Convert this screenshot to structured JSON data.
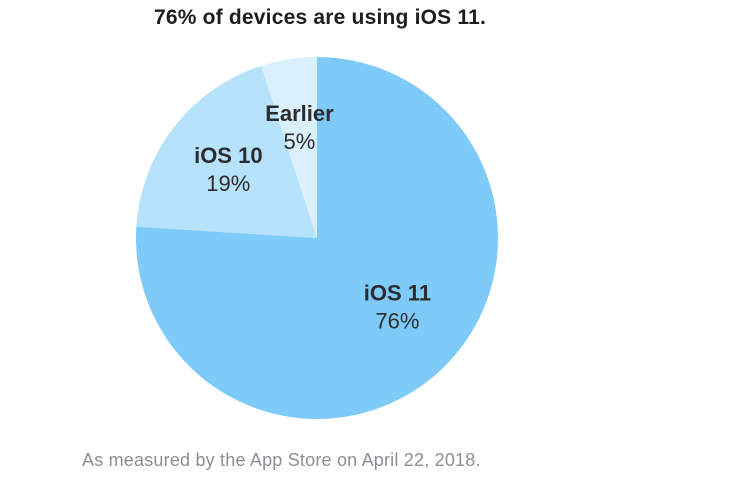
{
  "chart_data": {
    "type": "pie",
    "title": "76% of devices are using iOS 11.",
    "slices": [
      {
        "label": "iOS 11",
        "value": 76,
        "value_label": "76%",
        "color": "#7ecbfa"
      },
      {
        "label": "iOS 10",
        "value": 19,
        "value_label": "19%",
        "color": "#b6e2fc"
      },
      {
        "label": "Earlier",
        "value": 5,
        "value_label": "5%",
        "color": "#daf0fd"
      }
    ],
    "footnote": "As measured by the App Store on April 22, 2018."
  }
}
